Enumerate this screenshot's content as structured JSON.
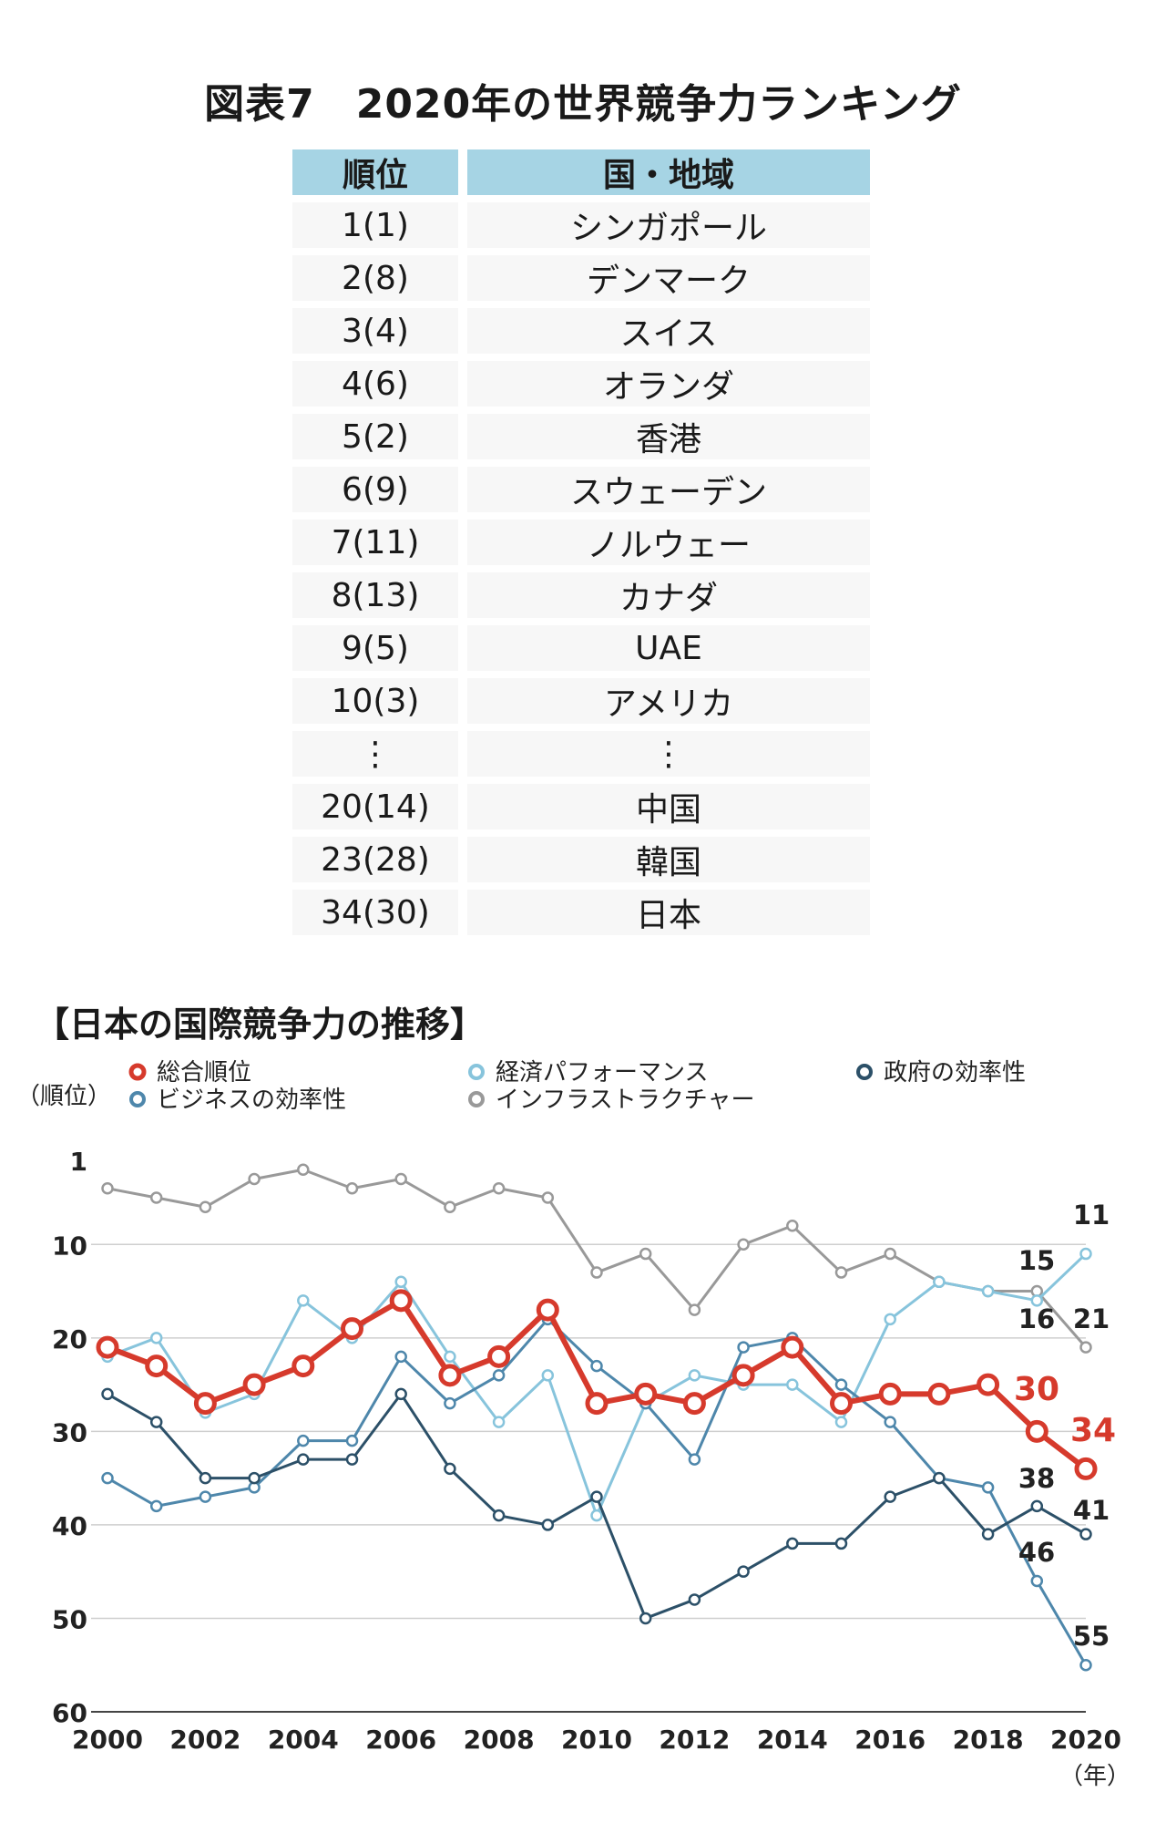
{
  "title": "図表7　2020年の世界競争力ランキング",
  "table": {
    "headers": [
      "順位",
      "国・地域"
    ],
    "rows": [
      [
        "1(1)",
        "シンガポール"
      ],
      [
        "2(8)",
        "デンマーク"
      ],
      [
        "3(4)",
        "スイス"
      ],
      [
        "4(6)",
        "オランダ"
      ],
      [
        "5(2)",
        "香港"
      ],
      [
        "6(9)",
        "スウェーデン"
      ],
      [
        "7(11)",
        "ノルウェー"
      ],
      [
        "8(13)",
        "カナダ"
      ],
      [
        "9(5)",
        "UAE"
      ],
      [
        "10(3)",
        "アメリカ"
      ],
      [
        "⋮",
        "⋮"
      ],
      [
        "20(14)",
        "中国"
      ],
      [
        "23(28)",
        "韓国"
      ],
      [
        "34(30)",
        "日本"
      ]
    ]
  },
  "chart_title": "【日本の国際競争力の推移】",
  "chart_data": {
    "type": "line",
    "ylabel": "（順位）",
    "xlabel": "（年）",
    "y_inverted": true,
    "ylim": [
      1,
      60
    ],
    "y_ticks": [
      1,
      10,
      20,
      30,
      40,
      50,
      60
    ],
    "x_ticks": [
      2000,
      2002,
      2004,
      2006,
      2008,
      2010,
      2012,
      2014,
      2016,
      2018,
      2020
    ],
    "x": [
      2000,
      2001,
      2002,
      2003,
      2004,
      2005,
      2006,
      2007,
      2008,
      2009,
      2010,
      2011,
      2012,
      2013,
      2014,
      2015,
      2016,
      2017,
      2018,
      2019,
      2020
    ],
    "grid": "horizontal",
    "legend_position": "top",
    "series": [
      {
        "name": "総合順位",
        "color": "#d63a2c",
        "values": [
          21,
          23,
          27,
          25,
          23,
          19,
          16,
          24,
          22,
          17,
          27,
          26,
          27,
          24,
          21,
          27,
          26,
          26,
          25,
          30,
          34
        ]
      },
      {
        "name": "ビジネスの効率性",
        "color": "#4e87ab",
        "values": [
          35,
          38,
          37,
          36,
          31,
          31,
          22,
          27,
          24,
          18,
          23,
          27,
          33,
          21,
          20,
          25,
          29,
          35,
          36,
          46,
          55
        ]
      },
      {
        "name": "経済パフォーマンス",
        "color": "#87c4dc",
        "values": [
          22,
          20,
          28,
          26,
          16,
          20,
          14,
          22,
          29,
          24,
          39,
          27,
          24,
          25,
          25,
          29,
          18,
          14,
          15,
          16,
          11
        ]
      },
      {
        "name": "インフラストラクチャー",
        "color": "#999999",
        "values": [
          4,
          5,
          6,
          3,
          2,
          4,
          3,
          6,
          4,
          5,
          13,
          11,
          17,
          10,
          8,
          13,
          11,
          14,
          15,
          15,
          21
        ]
      },
      {
        "name": "政府の効率性",
        "color": "#2c5068",
        "values": [
          26,
          29,
          35,
          35,
          33,
          33,
          26,
          34,
          39,
          40,
          37,
          50,
          48,
          45,
          42,
          42,
          37,
          35,
          41,
          38,
          41
        ]
      }
    ],
    "point_labels": [
      {
        "text": "11",
        "color": "#222222"
      },
      {
        "text": "15",
        "color": "#222222"
      },
      {
        "text": "16",
        "color": "#222222"
      },
      {
        "text": "21",
        "color": "#222222"
      },
      {
        "text": "30",
        "color": "#d63a2c"
      },
      {
        "text": "34",
        "color": "#d63a2c"
      },
      {
        "text": "38",
        "color": "#222222"
      },
      {
        "text": "41",
        "color": "#222222"
      },
      {
        "text": "46",
        "color": "#222222"
      },
      {
        "text": "55",
        "color": "#222222"
      }
    ]
  }
}
